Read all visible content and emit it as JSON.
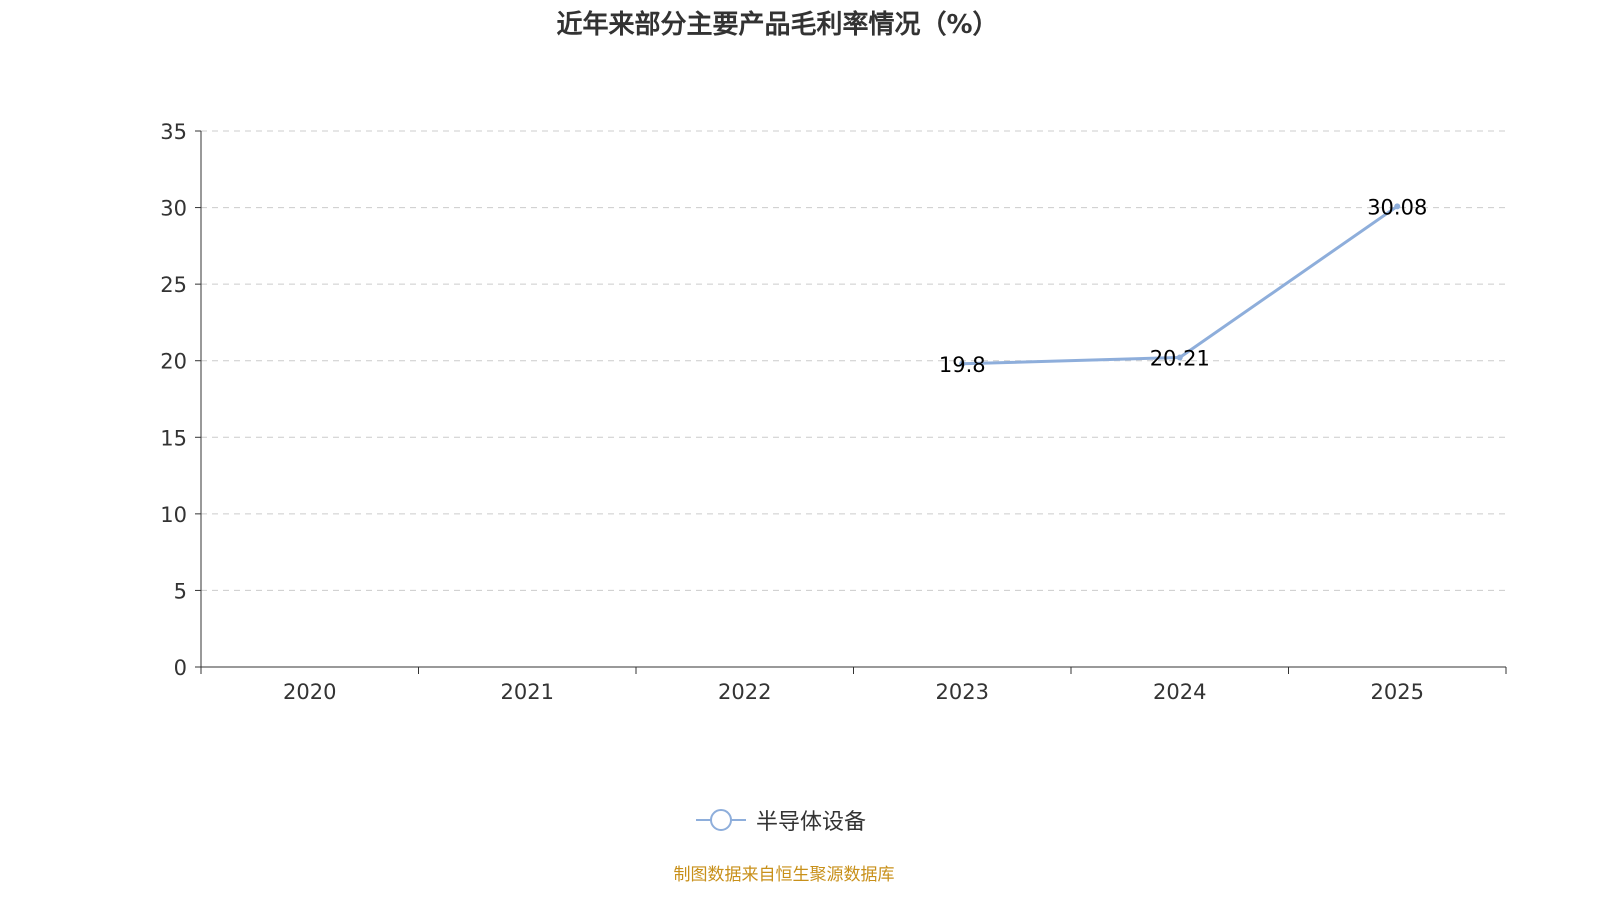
{
  "chart_data": {
    "type": "line",
    "title": "近年来部分主要产品毛利率情况（%）",
    "categories": [
      "2020",
      "2021",
      "2022",
      "2023",
      "2024",
      "2025"
    ],
    "series": [
      {
        "name": "半导体设备",
        "values": [
          null,
          null,
          null,
          19.8,
          20.21,
          30.08
        ],
        "labels": [
          "",
          "",
          "",
          "19.8",
          "20.21",
          "30.08"
        ],
        "color": "#8eaedb"
      }
    ],
    "yticks": [
      "0",
      "5",
      "10",
      "15",
      "20",
      "25",
      "30",
      "35"
    ],
    "ylim": [
      0,
      35
    ],
    "grid": true,
    "legend_position": "bottom",
    "xlabel": "",
    "ylabel": ""
  },
  "source": "制图数据来自恒生聚源数据库"
}
